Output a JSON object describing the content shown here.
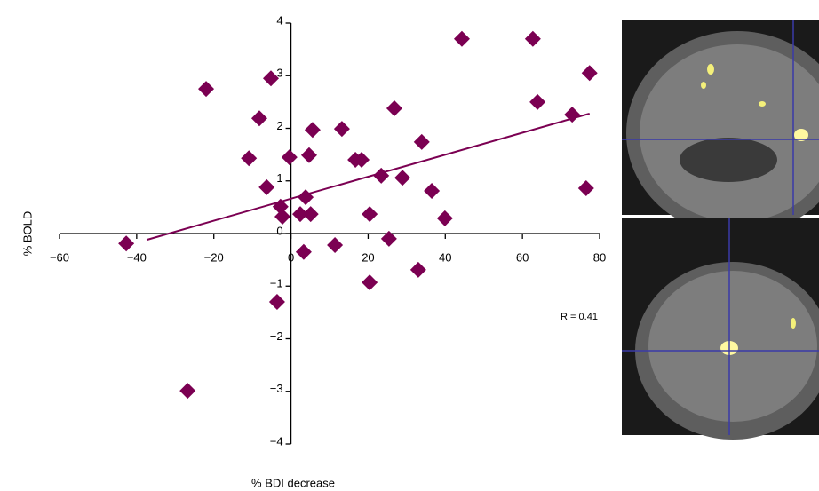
{
  "chart_data": {
    "type": "scatter",
    "x_label": "% BDI decrease",
    "y_label": "% BOLD",
    "annotation": "R = 0.41",
    "color": "#7b0052",
    "xlim": [
      -60,
      80
    ],
    "xticks": [
      {
        "value": -60,
        "label": "−60"
      },
      {
        "value": -40,
        "label": "−40"
      },
      {
        "value": -20,
        "label": "−20"
      },
      0,
      20,
      40,
      60,
      80
    ],
    "ylim": [
      -4,
      4
    ],
    "yticks": [
      {
        "value": -4,
        "label": "−4"
      },
      {
        "value": -3,
        "label": "−3"
      },
      {
        "value": -2,
        "label": "−2"
      },
      {
        "value": -1,
        "label": "−1"
      },
      0,
      1,
      2,
      3,
      4
    ],
    "x": [
      -42.7,
      -22.0,
      -26.8,
      -5.2,
      -8.2,
      -10.9,
      -6.3,
      -2.7,
      -2.2,
      -3.6,
      -0.4,
      5.6,
      4.7,
      3.8,
      2.4,
      5.1,
      3.3,
      13.2,
      16.7,
      18.3,
      11.4,
      20.4,
      20.4,
      23.4,
      26.8,
      28.9,
      25.4,
      33.9,
      36.5,
      33.0,
      39.9,
      44.3,
      62.7,
      63.9,
      72.9,
      77.4,
      76.5
    ],
    "y": [
      -0.19,
      2.75,
      -2.99,
      2.95,
      2.19,
      1.43,
      0.88,
      0.51,
      0.32,
      -1.3,
      1.45,
      1.97,
      1.49,
      0.69,
      0.37,
      0.37,
      -0.35,
      1.99,
      1.4,
      1.4,
      -0.22,
      0.37,
      -0.93,
      1.1,
      2.38,
      1.06,
      -0.1,
      1.74,
      0.81,
      -0.69,
      0.29,
      3.7,
      3.7,
      2.5,
      2.26,
      3.05,
      0.86
    ],
    "trendline": {
      "x": [
        -37.4,
        77.4
      ],
      "y": [
        -0.12,
        2.28
      ]
    }
  }
}
